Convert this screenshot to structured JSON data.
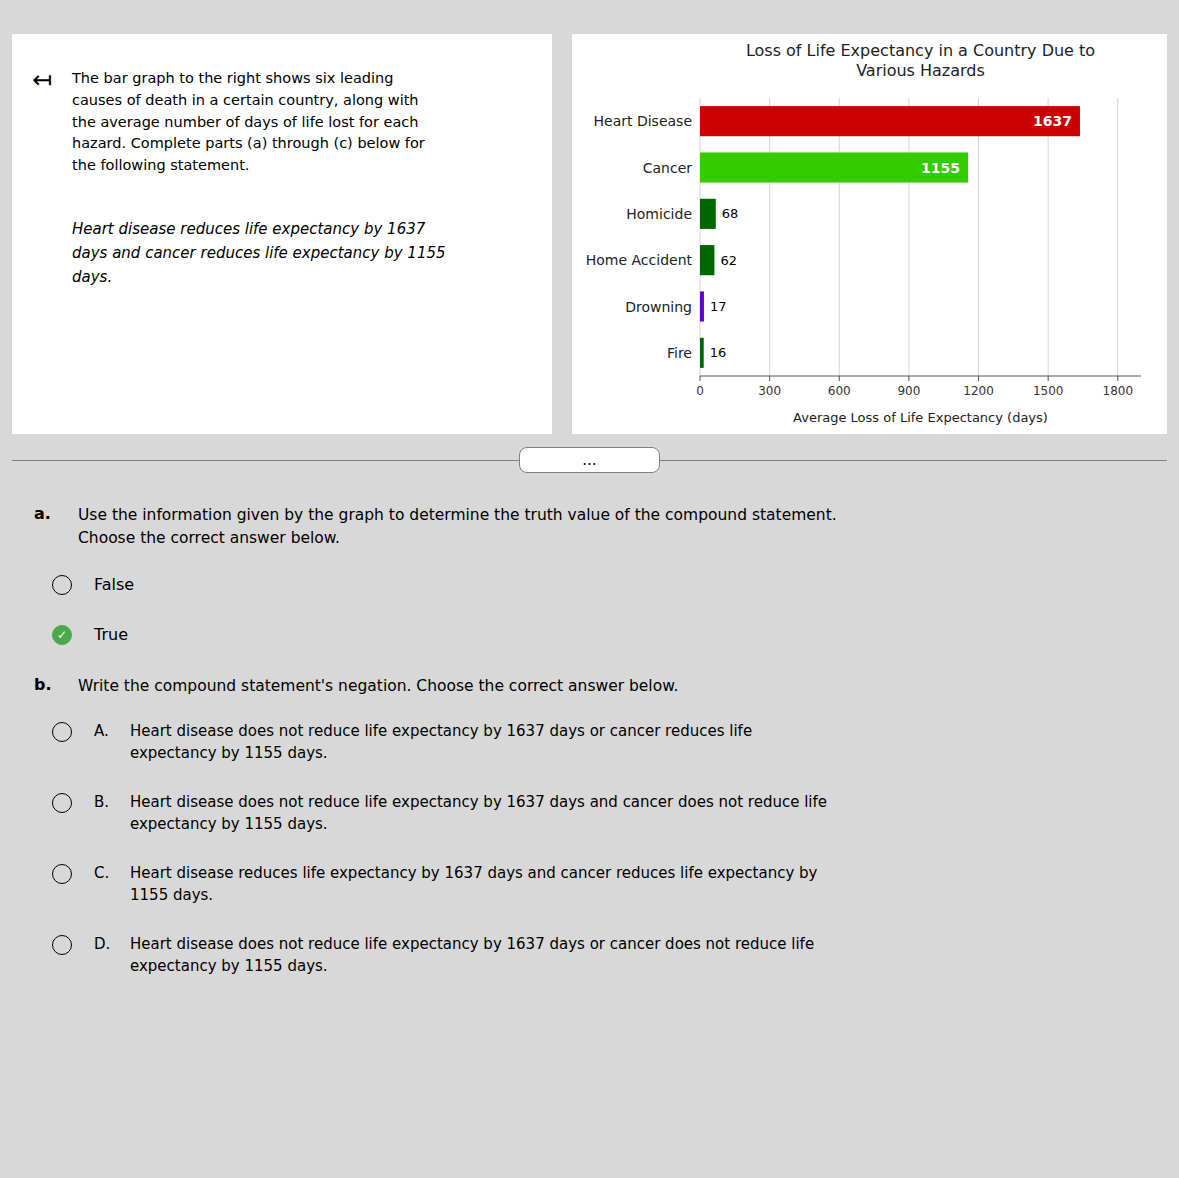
{
  "chart_data": {
    "type": "bar",
    "orientation": "horizontal",
    "title": "Loss of Life Expectancy in a Country Due to\nVarious Hazards",
    "categories": [
      "Heart Disease",
      "Cancer",
      "Homicide",
      "Home Accident",
      "Drowning",
      "Fire"
    ],
    "values": [
      1637,
      1155,
      68,
      62,
      17,
      16
    ],
    "colors": [
      "#cc0000",
      "#33cc00",
      "#006600",
      "#006600",
      "#6600cc",
      "#006600"
    ],
    "xlabel": "Average Loss of Life Expectancy (days)",
    "xlim": [
      0,
      1900
    ],
    "xticks": [
      0,
      300,
      600,
      900,
      1200,
      1500,
      1800
    ],
    "grid": true,
    "data_labels": true
  },
  "intro": {
    "icon": "↤",
    "text": "The bar graph to the right shows six leading\ncauses of death in a certain country, along with\nthe average number of days of life lost for each\nhazard. Complete parts (a) through (c) below for\nthe following statement.",
    "statement": "Heart disease reduces life expectancy by 1637\ndays and cancer reduces life expectancy by 1155\ndays."
  },
  "separator_button": "...",
  "check_mark": "✓",
  "part_a": {
    "label": "a.",
    "text": "Use the information given by the graph to determine the truth value of the compound statement.\nChoose the correct answer below.",
    "options": [
      "False",
      "True"
    ],
    "selected": "True"
  },
  "part_b": {
    "label": "b.",
    "text": "Write the compound statement's negation. Choose the correct answer below.",
    "options": [
      {
        "label": "A.",
        "text": "Heart disease does not reduce life expectancy by 1637 days or cancer reduces life\nexpectancy by 1155 days."
      },
      {
        "label": "B.",
        "text": "Heart disease does not reduce life expectancy by 1637 days and cancer does not reduce life\nexpectancy by 1155 days."
      },
      {
        "label": "C.",
        "text": "Heart disease reduces life expectancy by 1637 days and cancer reduces life expectancy by\n1155 days."
      },
      {
        "label": "D.",
        "text": "Heart disease does not reduce life expectancy by 1637 days or cancer does not reduce life\nexpectancy by 1155 days."
      }
    ]
  }
}
